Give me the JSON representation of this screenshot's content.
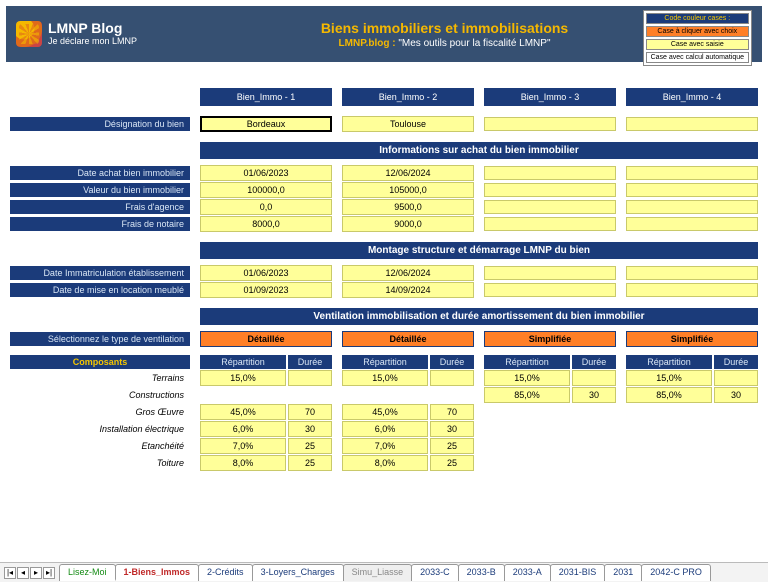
{
  "colors": {
    "header_bg": "#365072",
    "navy": "#1b3b7a",
    "yellow_cell": "#ffff99",
    "yellow_accent": "#f5b800",
    "orange": "#ff7f27",
    "white": "#ffffff"
  },
  "header": {
    "logo_title": "LMNP Blog",
    "logo_sub": "Je déclare mon LMNP",
    "title": "Biens immobiliers et immobilisations",
    "sub_prefix": "LMNP.blog :",
    "sub_quote": "\"Mes outils pour la fiscalité LMNP\""
  },
  "legend": {
    "title": "Code couleur cases :",
    "rows": [
      {
        "label": "Case à cliquer avec choix",
        "bg": "#ff7f27"
      },
      {
        "label": "Case avec saisie",
        "bg": "#ffff99"
      },
      {
        "label": "Case avec calcul automatique",
        "bg": "#ffffff"
      }
    ]
  },
  "biens": {
    "headers": [
      "Bien_Immo - 1",
      "Bien_Immo - 2",
      "Bien_Immo - 3",
      "Bien_Immo - 4"
    ],
    "designation_label": "Désignation du bien",
    "designation": [
      "Bordeaux",
      "Toulouse",
      "",
      ""
    ]
  },
  "section_achat": {
    "title": "Informations sur achat du bien immobilier",
    "rows": [
      {
        "label": "Date achat bien immobilier",
        "vals": [
          "01/06/2023",
          "12/06/2024",
          "",
          ""
        ]
      },
      {
        "label": "Valeur du bien immobilier",
        "vals": [
          "100000,0",
          "105000,0",
          "",
          ""
        ]
      },
      {
        "label": "Frais d'agence",
        "vals": [
          "0,0",
          "9500,0",
          "",
          ""
        ]
      },
      {
        "label": "Frais de notaire",
        "vals": [
          "8000,0",
          "9000,0",
          "",
          ""
        ]
      }
    ]
  },
  "section_montage": {
    "title": "Montage structure et démarrage LMNP du bien",
    "rows": [
      {
        "label": "Date Immatriculation établissement",
        "vals": [
          "01/06/2023",
          "12/06/2024",
          "",
          ""
        ]
      },
      {
        "label": "Date de mise en location meublé",
        "vals": [
          "01/09/2023",
          "14/09/2024",
          "",
          ""
        ]
      }
    ]
  },
  "section_vent": {
    "title": "Ventilation immobilisation et durée amortissement du bien immobilier",
    "select_label": "Sélectionnez le type de ventilation",
    "types": [
      "Détaillée",
      "Détaillée",
      "Simplifiée",
      "Simplifiée"
    ],
    "composants_label": "Composants",
    "col_rep": "Répartition",
    "col_dur": "Durée",
    "rows": [
      {
        "label": "Terrains",
        "italic": true,
        "cells": [
          {
            "rep": "15,0%",
            "dur": ""
          },
          {
            "rep": "15,0%",
            "dur": ""
          },
          {
            "rep": "15,0%",
            "dur": ""
          },
          {
            "rep": "15,0%",
            "dur": ""
          }
        ]
      },
      {
        "label": "Constructions",
        "italic": true,
        "cells": [
          {
            "rep": "",
            "dur": ""
          },
          {
            "rep": "",
            "dur": ""
          },
          {
            "rep": "85,0%",
            "dur": "30"
          },
          {
            "rep": "85,0%",
            "dur": "30"
          }
        ]
      },
      {
        "label": "Gros Œuvre",
        "italic": true,
        "cells": [
          {
            "rep": "45,0%",
            "dur": "70"
          },
          {
            "rep": "45,0%",
            "dur": "70"
          },
          {
            "rep": "",
            "dur": ""
          },
          {
            "rep": "",
            "dur": ""
          }
        ]
      },
      {
        "label": "Installation électrique",
        "italic": true,
        "cells": [
          {
            "rep": "6,0%",
            "dur": "30"
          },
          {
            "rep": "6,0%",
            "dur": "30"
          },
          {
            "rep": "",
            "dur": ""
          },
          {
            "rep": "",
            "dur": ""
          }
        ]
      },
      {
        "label": "Etanchéité",
        "italic": true,
        "cells": [
          {
            "rep": "7,0%",
            "dur": "25"
          },
          {
            "rep": "7,0%",
            "dur": "25"
          },
          {
            "rep": "",
            "dur": ""
          },
          {
            "rep": "",
            "dur": ""
          }
        ]
      },
      {
        "label": "Toiture",
        "italic": true,
        "cells": [
          {
            "rep": "8,0%",
            "dur": "25"
          },
          {
            "rep": "8,0%",
            "dur": "25"
          },
          {
            "rep": "",
            "dur": ""
          },
          {
            "rep": "",
            "dur": ""
          }
        ]
      }
    ]
  },
  "sheet_tabs": {
    "items": [
      {
        "label": "Lisez-Moi",
        "style": "green"
      },
      {
        "label": "1-Biens_Immos",
        "style": "active"
      },
      {
        "label": "2-Crédits",
        "style": ""
      },
      {
        "label": "3-Loyers_Charges",
        "style": ""
      },
      {
        "label": "Simu_Liasse",
        "style": "red dim"
      },
      {
        "label": "2033-C",
        "style": ""
      },
      {
        "label": "2033-B",
        "style": ""
      },
      {
        "label": "2033-A",
        "style": ""
      },
      {
        "label": "2031-BIS",
        "style": ""
      },
      {
        "label": "2031",
        "style": ""
      },
      {
        "label": "2042-C PRO",
        "style": ""
      }
    ]
  }
}
